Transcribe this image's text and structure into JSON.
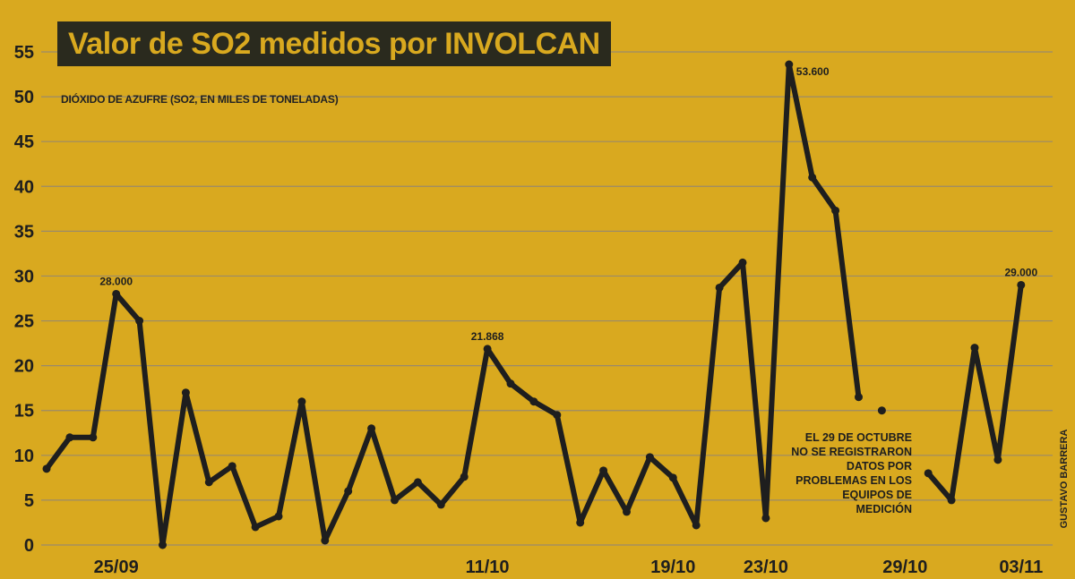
{
  "chart_data": {
    "type": "line",
    "title": "Valor de SO2 medidos por INVOLCAN",
    "ylabel": "DIÓXIDO DE AZUFRE (SO2, EN MILES DE TONELADAS)",
    "xlabel": "",
    "ylim": [
      0,
      55
    ],
    "yticks": [
      0,
      5,
      10,
      15,
      20,
      25,
      30,
      35,
      40,
      45,
      50,
      55
    ],
    "grid": true,
    "x_tick_labels": [
      {
        "x": 3,
        "label": "25/09"
      },
      {
        "x": 19,
        "label": "11/10"
      },
      {
        "x": 27,
        "label": "19/10"
      },
      {
        "x": 31,
        "label": "23/10"
      },
      {
        "x": 37,
        "label": "29/10"
      },
      {
        "x": 42,
        "label": "03/11"
      }
    ],
    "series": [
      {
        "name": "SO2",
        "segments": [
          {
            "x": [
              0,
              1,
              2,
              3,
              4,
              5,
              6,
              7,
              8,
              9,
              10,
              11,
              12,
              13,
              14,
              15,
              16,
              17,
              18,
              19,
              20,
              21,
              22,
              23,
              24,
              25,
              26,
              27,
              28,
              29,
              30,
              31,
              32,
              33,
              34,
              35
            ],
            "values": [
              8.5,
              12,
              12,
              28,
              25,
              0,
              17,
              7,
              8.8,
              2,
              3.2,
              16,
              0.5,
              6,
              13,
              5,
              7,
              4.5,
              7.6,
              21.868,
              18,
              16,
              14.5,
              2.5,
              8.3,
              3.7,
              9.8,
              7.5,
              2.2,
              28.7,
              31.5,
              3,
              53.6,
              41,
              37.3,
              16.5
            ]
          },
          {
            "x": [
              38,
              39,
              40,
              41,
              42
            ],
            "values": [
              8,
              5,
              22,
              9.5,
              29
            ]
          }
        ]
      }
    ],
    "annotations": [
      {
        "x": 3,
        "y": 28,
        "text": "28.000"
      },
      {
        "x": 19,
        "y": 21.868,
        "text": "21.868"
      },
      {
        "x": 32,
        "y": 53.6,
        "text": "53.600"
      },
      {
        "x": 42,
        "y": 29,
        "text": "29.000"
      }
    ],
    "extra_point": {
      "x": 36,
      "value": 15
    },
    "note_lines": [
      "EL 29 DE OCTUBRE",
      "NO SE REGISTRARON",
      "DATOS POR",
      "PROBLEMAS EN LOS",
      "EQUIPOS DE",
      "MEDICIÓN"
    ],
    "credit": "GUSTAVO BARRERA"
  },
  "colors": {
    "background": "#d9a91f",
    "line": "#1e1e1e",
    "grid": "#9a8a6a",
    "title_box": "#2a2a1e",
    "title_text": "#d9a91f"
  }
}
